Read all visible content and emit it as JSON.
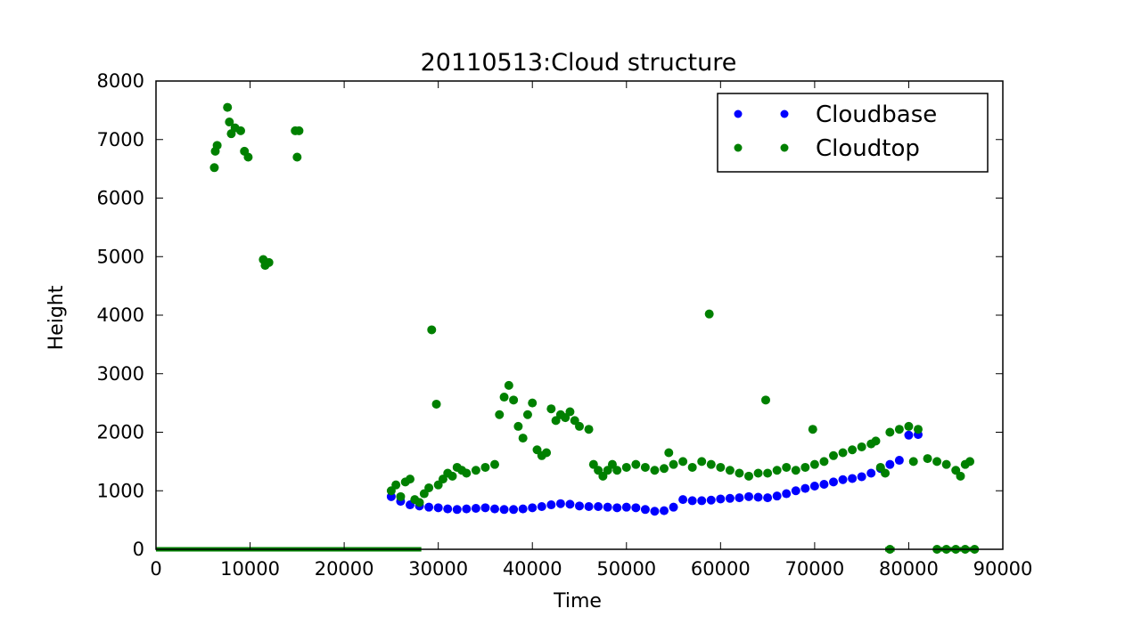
{
  "chart_data": {
    "type": "scatter",
    "title": "20110513:Cloud structure",
    "xlabel": "Time",
    "ylabel": "Height",
    "xlim": [
      0,
      90000
    ],
    "ylim": [
      0,
      8000
    ],
    "xticks": [
      "0",
      "10000",
      "20000",
      "30000",
      "40000",
      "50000",
      "60000",
      "70000",
      "80000",
      "90000"
    ],
    "yticks": [
      "0",
      "1000",
      "2000",
      "3000",
      "4000",
      "5000",
      "6000",
      "7000",
      "8000"
    ],
    "grid": false,
    "legend_position": "top-right",
    "series": [
      {
        "name": "Cloudbase",
        "color": "#0000ff",
        "points": [
          [
            25000,
            900
          ],
          [
            26000,
            820
          ],
          [
            27000,
            760
          ],
          [
            28000,
            740
          ],
          [
            29000,
            720
          ],
          [
            30000,
            710
          ],
          [
            31000,
            690
          ],
          [
            32000,
            680
          ],
          [
            33000,
            690
          ],
          [
            34000,
            700
          ],
          [
            35000,
            710
          ],
          [
            36000,
            690
          ],
          [
            37000,
            680
          ],
          [
            38000,
            680
          ],
          [
            39000,
            690
          ],
          [
            40000,
            710
          ],
          [
            41000,
            730
          ],
          [
            42000,
            760
          ],
          [
            43000,
            780
          ],
          [
            44000,
            770
          ],
          [
            45000,
            740
          ],
          [
            46000,
            730
          ],
          [
            47000,
            730
          ],
          [
            48000,
            720
          ],
          [
            49000,
            710
          ],
          [
            50000,
            720
          ],
          [
            51000,
            710
          ],
          [
            52000,
            680
          ],
          [
            53000,
            650
          ],
          [
            54000,
            660
          ],
          [
            55000,
            720
          ],
          [
            56000,
            850
          ],
          [
            57000,
            830
          ],
          [
            58000,
            830
          ],
          [
            59000,
            840
          ],
          [
            60000,
            860
          ],
          [
            61000,
            870
          ],
          [
            62000,
            880
          ],
          [
            63000,
            900
          ],
          [
            64000,
            890
          ],
          [
            65000,
            880
          ],
          [
            66000,
            910
          ],
          [
            67000,
            950
          ],
          [
            68000,
            1000
          ],
          [
            69000,
            1040
          ],
          [
            70000,
            1080
          ],
          [
            71000,
            1110
          ],
          [
            72000,
            1150
          ],
          [
            73000,
            1190
          ],
          [
            74000,
            1210
          ],
          [
            75000,
            1240
          ],
          [
            76000,
            1300
          ],
          [
            77000,
            1380
          ],
          [
            78000,
            1450
          ],
          [
            79000,
            1520
          ],
          [
            80000,
            1950
          ],
          [
            81000,
            1960
          ]
        ]
      },
      {
        "name": "Cloudtop",
        "color": "#008000",
        "points": [
          [
            6200,
            6520
          ],
          [
            6300,
            6800
          ],
          [
            6500,
            6900
          ],
          [
            7600,
            7550
          ],
          [
            7800,
            7300
          ],
          [
            8000,
            7100
          ],
          [
            8400,
            7200
          ],
          [
            9000,
            7150
          ],
          [
            9400,
            6800
          ],
          [
            9800,
            6700
          ],
          [
            11400,
            4950
          ],
          [
            11600,
            4850
          ],
          [
            12000,
            4900
          ],
          [
            14800,
            7150
          ],
          [
            15200,
            7150
          ],
          [
            15000,
            6700
          ],
          [
            25000,
            1000
          ],
          [
            25500,
            1100
          ],
          [
            26000,
            900
          ],
          [
            26500,
            1150
          ],
          [
            27000,
            1200
          ],
          [
            27500,
            850
          ],
          [
            28000,
            800
          ],
          [
            28500,
            950
          ],
          [
            29000,
            1050
          ],
          [
            29300,
            3750
          ],
          [
            29800,
            2480
          ],
          [
            30000,
            1100
          ],
          [
            30500,
            1200
          ],
          [
            31000,
            1300
          ],
          [
            31500,
            1250
          ],
          [
            32000,
            1400
          ],
          [
            32500,
            1350
          ],
          [
            33000,
            1300
          ],
          [
            34000,
            1350
          ],
          [
            35000,
            1400
          ],
          [
            36000,
            1450
          ],
          [
            36500,
            2300
          ],
          [
            37000,
            2600
          ],
          [
            37500,
            2800
          ],
          [
            38000,
            2550
          ],
          [
            38500,
            2100
          ],
          [
            39000,
            1900
          ],
          [
            39500,
            2300
          ],
          [
            40000,
            2500
          ],
          [
            40500,
            1700
          ],
          [
            41000,
            1600
          ],
          [
            41500,
            1650
          ],
          [
            42000,
            2400
          ],
          [
            42500,
            2200
          ],
          [
            43000,
            2300
          ],
          [
            43500,
            2250
          ],
          [
            44000,
            2350
          ],
          [
            44500,
            2200
          ],
          [
            45000,
            2100
          ],
          [
            46000,
            2050
          ],
          [
            46500,
            1450
          ],
          [
            47000,
            1350
          ],
          [
            47500,
            1250
          ],
          [
            48000,
            1350
          ],
          [
            48500,
            1450
          ],
          [
            49000,
            1350
          ],
          [
            50000,
            1400
          ],
          [
            51000,
            1450
          ],
          [
            52000,
            1400
          ],
          [
            53000,
            1350
          ],
          [
            54000,
            1380
          ],
          [
            54500,
            1650
          ],
          [
            55000,
            1450
          ],
          [
            56000,
            1500
          ],
          [
            57000,
            1400
          ],
          [
            58000,
            1500
          ],
          [
            58800,
            4020
          ],
          [
            59000,
            1450
          ],
          [
            60000,
            1400
          ],
          [
            61000,
            1350
          ],
          [
            62000,
            1300
          ],
          [
            63000,
            1250
          ],
          [
            64000,
            1300
          ],
          [
            64800,
            2550
          ],
          [
            65000,
            1300
          ],
          [
            66000,
            1350
          ],
          [
            67000,
            1400
          ],
          [
            68000,
            1350
          ],
          [
            69000,
            1400
          ],
          [
            69800,
            2050
          ],
          [
            70000,
            1450
          ],
          [
            71000,
            1500
          ],
          [
            72000,
            1600
          ],
          [
            73000,
            1650
          ],
          [
            74000,
            1700
          ],
          [
            75000,
            1750
          ],
          [
            76000,
            1800
          ],
          [
            76500,
            1850
          ],
          [
            77000,
            1400
          ],
          [
            77500,
            1300
          ],
          [
            78000,
            2000
          ],
          [
            79000,
            2050
          ],
          [
            80000,
            2100
          ],
          [
            80500,
            1500
          ],
          [
            81000,
            2050
          ],
          [
            82000,
            1550
          ],
          [
            83000,
            1500
          ],
          [
            84000,
            1450
          ],
          [
            85000,
            1350
          ],
          [
            85500,
            1250
          ],
          [
            86000,
            1450
          ],
          [
            86500,
            1500
          ],
          [
            78000,
            0
          ],
          [
            83000,
            0
          ],
          [
            84000,
            0
          ],
          [
            85000,
            0
          ],
          [
            86000,
            0
          ],
          [
            87000,
            0
          ]
        ]
      }
    ],
    "zero_line": {
      "color": "#008000",
      "segments": [
        [
          0,
          28200
        ],
        [
          77500,
          78500
        ],
        [
          83000,
          87000
        ]
      ]
    }
  }
}
